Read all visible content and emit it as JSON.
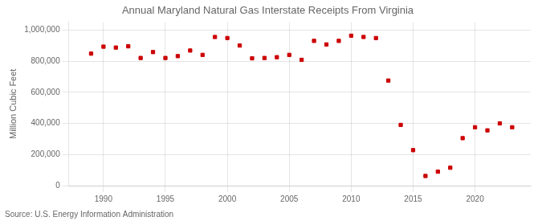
{
  "chart_data": {
    "type": "scatter",
    "title": "Annual Maryland Natural Gas Interstate Receipts From Virginia",
    "ylabel": "Million Cubic Feet",
    "annotations": [
      "Source: U.S. Energy Information Administration"
    ],
    "x": [
      1989,
      1990,
      1991,
      1992,
      1993,
      1994,
      1995,
      1996,
      1997,
      1998,
      1999,
      2000,
      2001,
      2002,
      2003,
      2004,
      2005,
      2006,
      2007,
      2008,
      2009,
      2010,
      2011,
      2012,
      2013,
      2014,
      2015,
      2016,
      2017,
      2018,
      2019,
      2020,
      2021,
      2022,
      2023
    ],
    "values": [
      848000,
      893000,
      887000,
      895000,
      820000,
      858000,
      820000,
      832000,
      868000,
      840000,
      955000,
      948000,
      900000,
      818000,
      820000,
      825000,
      840000,
      808000,
      930000,
      907000,
      930000,
      963000,
      955000,
      948000,
      675000,
      390000,
      228000,
      62000,
      90000,
      115000,
      305000,
      375000,
      355000,
      400000,
      375000
    ],
    "color": "#cc0000",
    "marker": "square",
    "xlim": [
      1987.2,
      2024.5
    ],
    "xticks": [
      1990,
      1995,
      2000,
      2005,
      2010,
      2015,
      2020
    ],
    "ylim": [
      0,
      1050000
    ],
    "yticks": [
      0,
      {
        "value": 200000,
        "label": "200,000"
      },
      {
        "value": 400000,
        "label": "400,000"
      },
      {
        "value": 600000,
        "label": "600,000"
      },
      {
        "value": 800000,
        "label": "800,000"
      },
      {
        "value": 1000000,
        "label": "1,000,000"
      }
    ],
    "grid": true
  }
}
